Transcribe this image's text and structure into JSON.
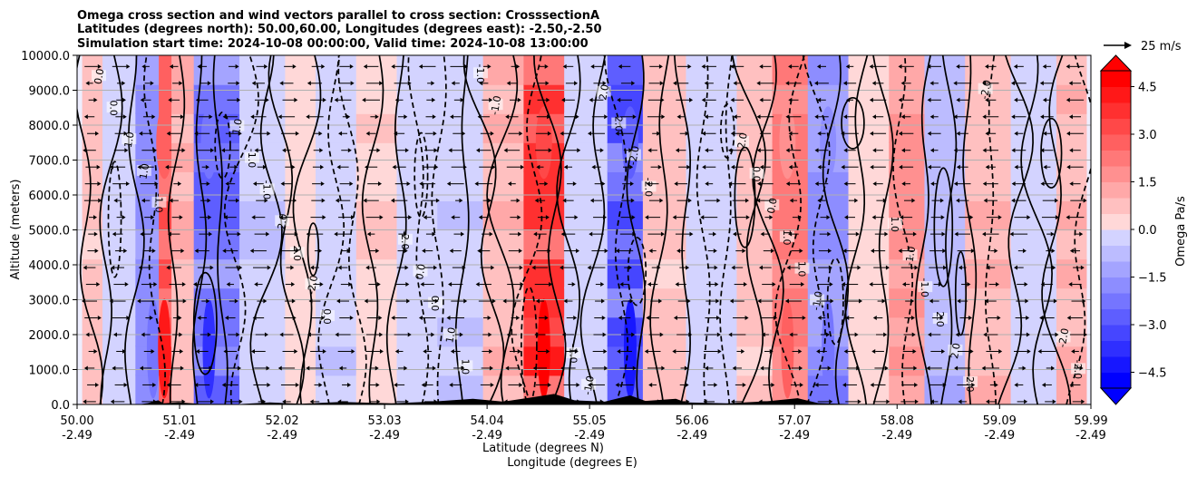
{
  "chart_data": {
    "type": "heatmap",
    "title_lines": [
      "Omega cross section and wind vectors parallel to cross section: CrosssectionA",
      "Latitudes (degrees north): 50.00,60.00, Longitudes (degrees east): -2.50,-2.50",
      "Simulation start time: 2024-10-08 00:00:00, Valid time: 2024-10-08 13:00:00"
    ],
    "xlabel_line1": "Latitude (degrees N)",
    "xlabel_line2": "Longitude (degrees E)",
    "ylabel": "Altitude (meters)",
    "x_range": [
      50.0,
      59.99
    ],
    "y_range": [
      0,
      10000
    ],
    "x_ticks": [
      {
        "lat": "50.00",
        "lon": "-2.49",
        "value": 50.0
      },
      {
        "lat": "51.01",
        "lon": "-2.49",
        "value": 51.01
      },
      {
        "lat": "52.02",
        "lon": "-2.49",
        "value": 52.02
      },
      {
        "lat": "53.03",
        "lon": "-2.49",
        "value": 53.03
      },
      {
        "lat": "54.04",
        "lon": "-2.49",
        "value": 54.04
      },
      {
        "lat": "55.05",
        "lon": "-2.49",
        "value": 55.05
      },
      {
        "lat": "56.06",
        "lon": "-2.49",
        "value": 56.06
      },
      {
        "lat": "57.07",
        "lon": "-2.49",
        "value": 57.07
      },
      {
        "lat": "58.08",
        "lon": "-2.49",
        "value": 58.08
      },
      {
        "lat": "59.09",
        "lon": "-2.49",
        "value": 59.09
      },
      {
        "lat": "59.99",
        "lon": "-2.49",
        "value": 59.99
      }
    ],
    "y_ticks": [
      {
        "label": "0.0",
        "value": 0
      },
      {
        "label": "1000.0",
        "value": 1000
      },
      {
        "label": "2000.0",
        "value": 2000
      },
      {
        "label": "3000.0",
        "value": 3000
      },
      {
        "label": "4000.0",
        "value": 4000
      },
      {
        "label": "5000.0",
        "value": 5000
      },
      {
        "label": "6000.0",
        "value": 6000
      },
      {
        "label": "7000.0",
        "value": 7000
      },
      {
        "label": "8000.0",
        "value": 8000
      },
      {
        "label": "9000.0",
        "value": 9000
      },
      {
        "label": "10000.0",
        "value": 10000
      }
    ],
    "colorbar": {
      "label": "Omega Pa/s",
      "range": [
        -5.0,
        5.0
      ],
      "tick_labels": [
        "4.5",
        "3.0",
        "1.5",
        "0.0",
        "−1.5",
        "−3.0",
        "−4.5"
      ],
      "tick_values": [
        4.5,
        3.0,
        1.5,
        0.0,
        -1.5,
        -3.0,
        -4.5
      ],
      "positive_color": "#ff0000",
      "negative_color": "#0000ff",
      "neutral_color": "#ffffff"
    },
    "vector_key": "25 m/s",
    "contour_labels": [
      "0.0",
      "1.0",
      "-1.0",
      "2.0",
      "-2.0"
    ],
    "omega_columns": [
      {
        "lat": 50.1,
        "value": 0.8
      },
      {
        "lat": 50.4,
        "value": -0.4
      },
      {
        "lat": 50.75,
        "value": -2.0
      },
      {
        "lat": 50.86,
        "value": 3.5
      },
      {
        "lat": 51.0,
        "value": 1.5
      },
      {
        "lat": 51.3,
        "value": -3.0
      },
      {
        "lat": 51.9,
        "value": -0.6
      },
      {
        "lat": 52.2,
        "value": 0.5
      },
      {
        "lat": 52.5,
        "value": -0.5
      },
      {
        "lat": 53.0,
        "value": 0.6
      },
      {
        "lat": 53.3,
        "value": -0.4
      },
      {
        "lat": 53.8,
        "value": -0.6
      },
      {
        "lat": 54.2,
        "value": 1.2
      },
      {
        "lat": 54.6,
        "value": 4.0
      },
      {
        "lat": 55.0,
        "value": -0.4
      },
      {
        "lat": 55.45,
        "value": -3.5
      },
      {
        "lat": 55.7,
        "value": 1.0
      },
      {
        "lat": 56.3,
        "value": -0.3
      },
      {
        "lat": 56.7,
        "value": 1.0
      },
      {
        "lat": 57.0,
        "value": 2.5
      },
      {
        "lat": 57.4,
        "value": -2.0
      },
      {
        "lat": 57.8,
        "value": 0.4
      },
      {
        "lat": 58.2,
        "value": 1.8
      },
      {
        "lat": 58.5,
        "value": -1.0
      },
      {
        "lat": 59.0,
        "value": 1.2
      },
      {
        "lat": 59.4,
        "value": -0.3
      },
      {
        "lat": 59.9,
        "value": 1.3
      }
    ]
  }
}
